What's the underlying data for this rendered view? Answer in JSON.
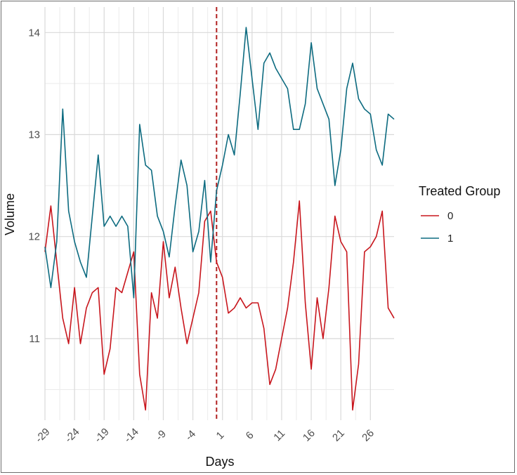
{
  "chart_data": {
    "type": "line",
    "title": "",
    "xlabel": "Days",
    "ylabel": "Volume",
    "xlim": [
      -29,
      30
    ],
    "ylim": [
      10.2,
      14.25
    ],
    "x_ticks": [
      -29,
      -24,
      -19,
      -14,
      -9,
      -4,
      1,
      6,
      11,
      16,
      21,
      26
    ],
    "x_tick_labels": [
      "-29",
      "-24",
      "-19",
      "-14",
      "-9",
      "-4",
      "1",
      "6",
      "11",
      "16",
      "21",
      "26"
    ],
    "y_ticks": [
      11,
      12,
      13,
      14
    ],
    "y_tick_labels": [
      "11",
      "12",
      "13",
      "14"
    ],
    "grid": true,
    "vline": {
      "x": 0,
      "style": "dashed",
      "color": "#b22222"
    },
    "legend": {
      "title": "Treated Group",
      "position": "right"
    },
    "colors": {
      "0": "#c8161d",
      "1": "#0d6b80"
    },
    "x": [
      -29,
      -28,
      -27,
      -26,
      -25,
      -24,
      -23,
      -22,
      -21,
      -20,
      -19,
      -18,
      -17,
      -16,
      -15,
      -14,
      -13,
      -12,
      -11,
      -10,
      -9,
      -8,
      -7,
      -6,
      -5,
      -4,
      -3,
      -2,
      -1,
      0,
      1,
      2,
      3,
      4,
      5,
      6,
      7,
      8,
      9,
      10,
      11,
      12,
      13,
      14,
      15,
      16,
      17,
      18,
      19,
      20,
      21,
      22,
      23,
      24,
      25,
      26,
      27,
      28,
      29,
      30
    ],
    "series": [
      {
        "name": "0",
        "values": [
          11.85,
          12.3,
          11.75,
          11.2,
          10.95,
          11.5,
          10.95,
          11.3,
          11.45,
          11.5,
          10.65,
          10.9,
          11.5,
          11.45,
          11.65,
          11.85,
          10.65,
          10.3,
          11.45,
          11.2,
          11.95,
          11.4,
          11.7,
          11.3,
          10.95,
          11.2,
          11.45,
          12.15,
          12.25,
          11.75,
          11.6,
          11.25,
          11.3,
          11.4,
          11.3,
          11.35,
          11.35,
          11.1,
          10.55,
          10.7,
          11.0,
          11.3,
          11.75,
          12.35,
          11.35,
          10.7,
          11.4,
          11.0,
          11.5,
          12.2,
          11.95,
          11.85,
          10.3,
          10.75,
          11.85,
          11.9,
          12.0,
          12.25,
          11.3,
          11.2
        ]
      },
      {
        "name": "1",
        "values": [
          11.9,
          11.5,
          11.95,
          13.25,
          12.25,
          11.95,
          11.75,
          11.6,
          12.2,
          12.8,
          12.1,
          12.2,
          12.1,
          12.2,
          12.1,
          11.4,
          13.1,
          12.7,
          12.65,
          12.2,
          12.05,
          11.8,
          12.3,
          12.75,
          12.5,
          11.85,
          12.05,
          12.55,
          11.75,
          12.45,
          12.7,
          13.0,
          12.8,
          13.4,
          14.05,
          13.55,
          13.05,
          13.7,
          13.8,
          13.65,
          13.55,
          13.45,
          13.05,
          13.05,
          13.3,
          13.9,
          13.45,
          13.3,
          13.15,
          12.5,
          12.85,
          13.45,
          13.7,
          13.35,
          13.25,
          13.2,
          12.85,
          12.7,
          13.2,
          13.15
        ]
      }
    ]
  }
}
